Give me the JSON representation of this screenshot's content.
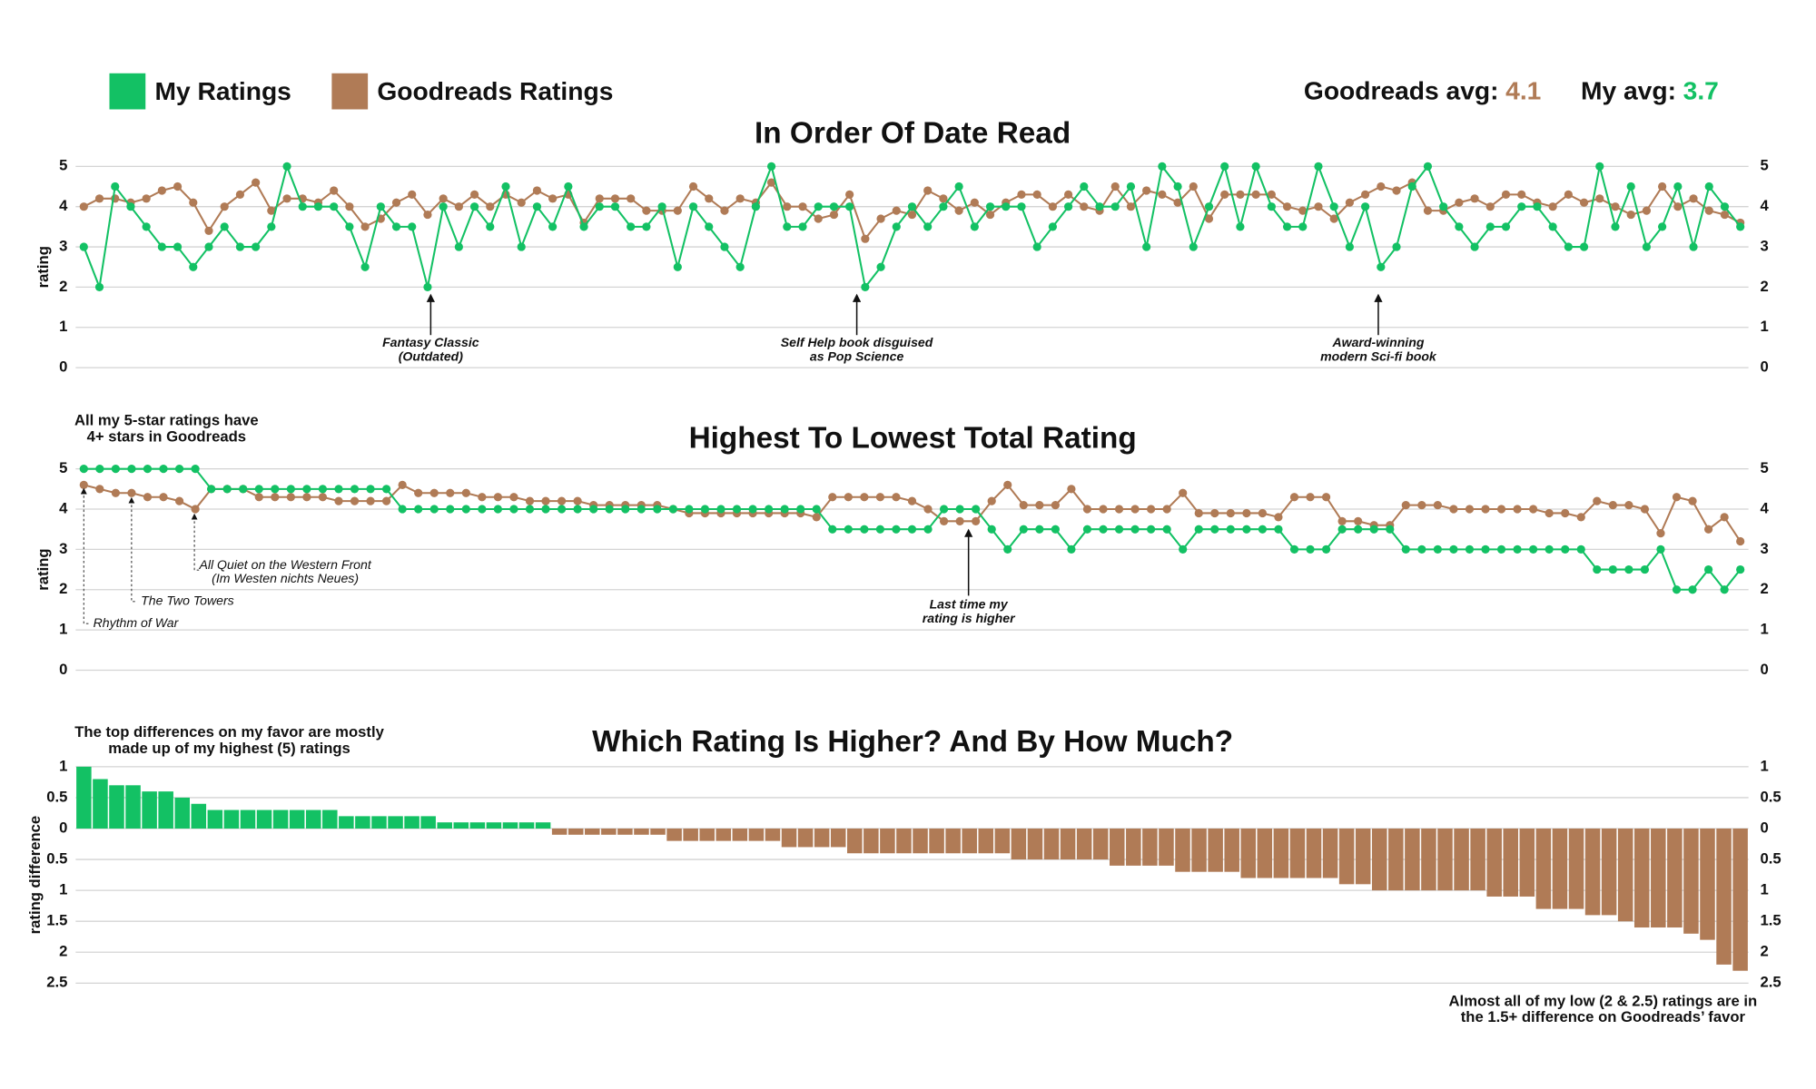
{
  "legend": {
    "stats": [
      {
        "label": "Goodreads avg:",
        "value": 4.1,
        "color": "#b07b56"
      },
      {
        "label": "My avg:",
        "value": 3.7,
        "color": "#13c164"
      }
    ]
  },
  "chart_data": [
    {
      "type": "line",
      "title": "In Order Of Date Read",
      "ylabel": "rating",
      "ylim": [
        0,
        5
      ],
      "yticks": [
        0,
        1,
        2,
        3,
        4,
        5
      ],
      "y2lim": [
        0,
        5
      ],
      "y2ticks": [
        0,
        1,
        2,
        3,
        4,
        5
      ],
      "grid": true,
      "series": [
        {
          "name": "My Ratings",
          "color": "#13c164",
          "values": [
            3,
            2,
            4.5,
            4,
            3.5,
            3,
            3,
            2.5,
            3,
            3.5,
            3,
            3,
            3.5,
            5,
            4,
            4,
            4,
            3.5,
            2.5,
            4,
            3.5,
            3.5,
            2,
            4,
            3,
            4,
            3.5,
            4.5,
            3,
            4,
            3.5,
            4.5,
            3.5,
            4,
            4,
            3.5,
            3.5,
            4,
            2.5,
            4,
            3.5,
            3,
            2.5,
            4,
            5,
            3.5,
            3.5,
            4,
            4,
            4,
            2,
            2.5,
            3.5,
            4,
            3.5,
            4,
            4.5,
            3.5,
            4,
            4,
            4,
            3,
            3.5,
            4,
            4.5,
            4,
            4,
            4.5,
            3,
            5,
            4.5,
            3,
            4,
            5,
            3.5,
            5,
            4,
            3.5,
            3.5,
            5,
            4,
            3,
            4,
            2.5,
            3,
            4.5,
            5,
            4,
            3.5,
            3,
            3.5,
            3.5,
            4,
            4,
            3.5,
            3,
            3,
            5,
            3.5,
            4.5,
            3,
            3.5,
            4.5,
            3,
            4.5,
            4,
            3.5
          ]
        },
        {
          "name": "Goodreads Ratings",
          "color": "#b07b56",
          "values": [
            4,
            4.2,
            4.2,
            4.1,
            4.2,
            4.4,
            4.5,
            4.1,
            3.4,
            4,
            4.3,
            4.6,
            3.9,
            4.2,
            4.2,
            4.1,
            4.4,
            4,
            3.5,
            3.7,
            4.1,
            4.3,
            3.8,
            4.2,
            4,
            4.3,
            4,
            4.3,
            4.1,
            4.4,
            4.2,
            4.3,
            3.6,
            4.2,
            4.2,
            4.2,
            3.9,
            3.9,
            3.9,
            4.5,
            4.2,
            3.9,
            4.2,
            4.1,
            4.6,
            4,
            4,
            3.7,
            3.8,
            4.3,
            3.2,
            3.7,
            3.9,
            3.8,
            4.4,
            4.2,
            3.9,
            4.1,
            3.8,
            4.1,
            4.3,
            4.3,
            4,
            4.3,
            4,
            3.9,
            4.5,
            4,
            4.4,
            4.3,
            4.1,
            4.5,
            3.7,
            4.3,
            4.3,
            4.3,
            4.3,
            4,
            3.9,
            4,
            3.7,
            4.1,
            4.3,
            4.5,
            4.4,
            4.6,
            3.9,
            3.9,
            4.1,
            4.2,
            4,
            4.3,
            4.3,
            4.1,
            4,
            4.3,
            4.1,
            4.2,
            4,
            3.8,
            3.9,
            4.5,
            4,
            4.2,
            3.9,
            3.8,
            3.6
          ]
        }
      ],
      "annotations": [
        {
          "lines": [
            "Fantasy Classic",
            "(Outdated)"
          ]
        },
        {
          "lines": [
            "Self Help book disguised",
            "as Pop Science"
          ]
        },
        {
          "lines": [
            "Award-winning",
            "modern Sci-fi book"
          ]
        }
      ]
    },
    {
      "type": "line",
      "title": "Highest To Lowest Total Rating",
      "ylabel": "rating",
      "ylim": [
        0,
        5
      ],
      "yticks": [
        0,
        1,
        2,
        3,
        4,
        5
      ],
      "y2lim": [
        0,
        5
      ],
      "y2ticks": [
        0,
        1,
        2,
        3,
        4,
        5
      ],
      "grid": true,
      "series": [
        {
          "name": "My Ratings",
          "color": "#13c164",
          "values": [
            5,
            5,
            5,
            5,
            5,
            5,
            5,
            5,
            4.5,
            4.5,
            4.5,
            4.5,
            4.5,
            4.5,
            4.5,
            4.5,
            4.5,
            4.5,
            4.5,
            4.5,
            4,
            4,
            4,
            4,
            4,
            4,
            4,
            4,
            4,
            4,
            4,
            4,
            4,
            4,
            4,
            4,
            4,
            4,
            4,
            4,
            4,
            4,
            4,
            4,
            4,
            4,
            4,
            3.5,
            3.5,
            3.5,
            3.5,
            3.5,
            3.5,
            3.5,
            4,
            4,
            4,
            3.5,
            3,
            3.5,
            3.5,
            3.5,
            3,
            3.5,
            3.5,
            3.5,
            3.5,
            3.5,
            3.5,
            3,
            3.5,
            3.5,
            3.5,
            3.5,
            3.5,
            3.5,
            3,
            3,
            3,
            3.5,
            3.5,
            3.5,
            3.5,
            3,
            3,
            3,
            3,
            3,
            3,
            3,
            3,
            3,
            3,
            3,
            3,
            2.5,
            2.5,
            2.5,
            2.5,
            3,
            2,
            2,
            2.5,
            2,
            2.5
          ]
        },
        {
          "name": "Goodreads Ratings",
          "color": "#b07b56",
          "values": [
            4.6,
            4.5,
            4.4,
            4.4,
            4.3,
            4.3,
            4.2,
            4,
            4.5,
            4.5,
            4.5,
            4.3,
            4.3,
            4.3,
            4.3,
            4.3,
            4.2,
            4.2,
            4.2,
            4.2,
            4.6,
            4.4,
            4.4,
            4.4,
            4.4,
            4.3,
            4.3,
            4.3,
            4.2,
            4.2,
            4.2,
            4.2,
            4.1,
            4.1,
            4.1,
            4.1,
            4.1,
            4,
            3.9,
            3.9,
            3.9,
            3.9,
            3.9,
            3.9,
            3.9,
            3.9,
            3.8,
            4.3,
            4.3,
            4.3,
            4.3,
            4.3,
            4.2,
            4,
            3.7,
            3.7,
            3.7,
            4.2,
            4.6,
            4.1,
            4.1,
            4.1,
            4.5,
            4,
            4,
            4,
            4,
            4,
            4,
            4.4,
            3.9,
            3.9,
            3.9,
            3.9,
            3.9,
            3.8,
            4.3,
            4.3,
            4.3,
            3.7,
            3.7,
            3.6,
            3.6,
            4.1,
            4.1,
            4.1,
            4,
            4,
            4,
            4,
            4,
            4,
            3.9,
            3.9,
            3.8,
            4.2,
            4.1,
            4.1,
            4,
            3.4,
            4.3,
            4.2,
            3.5,
            3.8,
            3.2
          ]
        }
      ],
      "annotations": [
        {
          "lines": [
            "All my 5-star ratings have",
            "4+ stars in Goodreads"
          ]
        },
        {
          "lines": [
            "Last time my",
            "rating is higher"
          ]
        },
        {
          "lines": [
            "Rhythm of War"
          ]
        },
        {
          "lines": [
            "The Two Towers"
          ]
        },
        {
          "lines": [
            "All Quiet on the Western Front",
            "(Im Westen nichts Neues)"
          ]
        }
      ]
    },
    {
      "type": "bar",
      "title": "Which Rating Is Higher? And By How Much?",
      "ylabel": "rating difference",
      "ylim": [
        -2.5,
        1
      ],
      "yticks": [
        {
          "value": -2.5,
          "label": "2.5"
        },
        {
          "value": -2,
          "label": "2"
        },
        {
          "value": -1.5,
          "label": "1.5"
        },
        {
          "value": -1,
          "label": "1"
        },
        {
          "value": -0.5,
          "label": "0.5"
        },
        0,
        0.5,
        1
      ],
      "y2lim": [
        -2.5,
        1
      ],
      "y2ticks": [
        {
          "value": -2.5,
          "label": "2.5"
        },
        {
          "value": -2,
          "label": "2"
        },
        {
          "value": -1.5,
          "label": "1.5"
        },
        {
          "value": -1,
          "label": "1"
        },
        {
          "value": -0.5,
          "label": "0.5"
        },
        0,
        0.5,
        1
      ],
      "grid": true,
      "positive_color": "#13c164",
      "negative_color": "#b07b56",
      "values": [
        1,
        0.8,
        0.7,
        0.7,
        0.6,
        0.6,
        0.5,
        0.4,
        0.3,
        0.3,
        0.3,
        0.3,
        0.3,
        0.3,
        0.3,
        0.3,
        0.2,
        0.2,
        0.2,
        0.2,
        0.2,
        0.2,
        0.1,
        0.1,
        0.1,
        0.1,
        0.1,
        0.1,
        0.1,
        -0.1,
        -0.1,
        -0.1,
        -0.1,
        -0.1,
        -0.1,
        -0.1,
        -0.2,
        -0.2,
        -0.2,
        -0.2,
        -0.2,
        -0.2,
        -0.2,
        -0.3,
        -0.3,
        -0.3,
        -0.3,
        -0.4,
        -0.4,
        -0.4,
        -0.4,
        -0.4,
        -0.4,
        -0.4,
        -0.4,
        -0.4,
        -0.4,
        -0.5,
        -0.5,
        -0.5,
        -0.5,
        -0.5,
        -0.5,
        -0.6,
        -0.6,
        -0.6,
        -0.6,
        -0.7,
        -0.7,
        -0.7,
        -0.7,
        -0.8,
        -0.8,
        -0.8,
        -0.8,
        -0.8,
        -0.8,
        -0.9,
        -0.9,
        -1,
        -1,
        -1,
        -1,
        -1,
        -1,
        -1,
        -1.1,
        -1.1,
        -1.1,
        -1.3,
        -1.3,
        -1.3,
        -1.4,
        -1.4,
        -1.5,
        -1.6,
        -1.6,
        -1.6,
        -1.7,
        -1.8,
        -2.2,
        -2.3
      ],
      "annotations": [
        {
          "lines": [
            "The top differences on my favor are mostly",
            "made up of my highest (5) ratings"
          ]
        },
        {
          "lines": [
            "Almost all of my low (2 & 2.5) ratings are in",
            "the 1.5+ difference on Goodreads’ favor"
          ]
        }
      ]
    }
  ]
}
